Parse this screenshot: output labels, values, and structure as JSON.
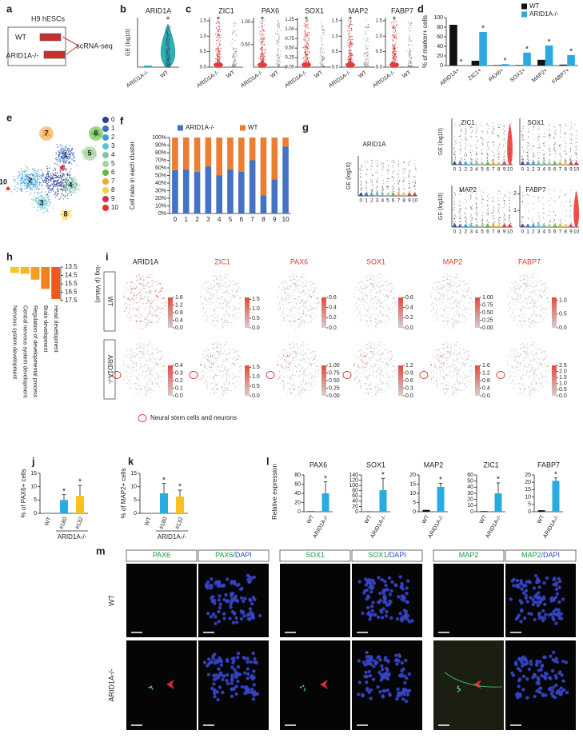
{
  "a": {
    "label": "a",
    "cell_line": "H9 hESCs",
    "groups": [
      "WT",
      "ARID1A-/-"
    ],
    "method": "scRNA-seq"
  },
  "b": {
    "label": "b",
    "type": "violin",
    "title": "ARID1A",
    "ylabel": "GE (log10)",
    "categories": [
      "ARID1A-/-",
      "WT"
    ],
    "sig": "*"
  },
  "c": {
    "label": "c",
    "charts": [
      {
        "type": "violin",
        "title": "ZIC1",
        "categories": [
          "ARID1A-/-",
          "WT"
        ],
        "sig": "*",
        "ylim": [
          0,
          1.6
        ],
        "yticks": [
          {
            "value": 0,
            "label": "0.0"
          },
          0.5,
          {
            "value": 1,
            "label": "1.0"
          },
          1.5
        ]
      },
      {
        "type": "violin",
        "title": "PAX6",
        "categories": [
          "ARID1A-/-",
          "WT"
        ],
        "sig": "*",
        "ylim": [
          0,
          1.1
        ],
        "yticks": [
          {
            "value": 0.5,
            "label": "0.50"
          },
          {
            "value": 1,
            "label": "1.00"
          }
        ]
      },
      {
        "type": "violin",
        "title": "SOX1",
        "categories": [
          "ARID1A-/-",
          "WT"
        ],
        "sig": "*",
        "ylim": [
          0,
          1.3
        ],
        "yticks": [
          {
            "value": 0,
            "label": "0.00"
          },
          0.25,
          {
            "value": 0.5,
            "label": "0.50"
          },
          0.75,
          {
            "value": 1,
            "label": "1.00"
          },
          1.25
        ]
      },
      {
        "type": "violin",
        "title": "MAP2",
        "categories": [
          "ARID1A-/-",
          "WT"
        ],
        "sig": "*",
        "ylim": [
          0,
          1.6
        ],
        "yticks": [
          {
            "value": 0,
            "label": "0.0"
          },
          0.5,
          {
            "value": 1,
            "label": "1.0"
          },
          1.5
        ]
      },
      {
        "type": "violin",
        "title": "FABP7",
        "categories": [
          "ARID1A-/-",
          "WT"
        ],
        "sig": "*",
        "ylim": [
          0,
          1.6
        ],
        "yticks": [
          {
            "value": 0,
            "label": "0.0"
          },
          0.5,
          {
            "value": 1,
            "label": "1.0"
          },
          1.5
        ]
      }
    ]
  },
  "d": {
    "label": "d",
    "type": "bar",
    "ylabel": "% of marker+ cells",
    "categories": [
      "ARID1A+",
      "ZIC1+",
      "PAX6+",
      "SOX1+",
      "MAP2+",
      "FABP7+"
    ],
    "series": [
      {
        "name": "WT",
        "color": "#111111",
        "values": [
          85,
          10,
          1,
          1,
          12,
          2
        ]
      },
      {
        "name": "ARID1A-/-",
        "color": "#29abe2",
        "values": [
          0,
          70,
          3,
          27,
          42,
          22
        ],
        "sig": [
          "*",
          "*",
          "*",
          "*",
          "*",
          "*"
        ]
      }
    ],
    "ylim": [
      0,
      100
    ],
    "yticks": [
      0,
      20,
      40,
      60,
      80,
      100
    ]
  },
  "e": {
    "label": "e",
    "clusters": [
      {
        "label": "0",
        "color": "#2c3e93"
      },
      {
        "label": "1",
        "color": "#3d6cc0"
      },
      {
        "label": "2",
        "color": "#35a2d6"
      },
      {
        "label": "3",
        "color": "#5dc2cf"
      },
      {
        "label": "4",
        "color": "#7cc6a3"
      },
      {
        "label": "5",
        "color": "#9fd39c"
      },
      {
        "label": "6",
        "color": "#64b944"
      },
      {
        "label": "7",
        "color": "#f5a540"
      },
      {
        "label": "8",
        "color": "#f3d33b"
      },
      {
        "label": "9",
        "color": "#d62d51"
      },
      {
        "label": "10",
        "color": "#e8302a"
      }
    ]
  },
  "f": {
    "label": "f",
    "type": "bar",
    "stacked": true,
    "ylabel": "Cell ratio in each cluster",
    "categories": [
      "0",
      "1",
      "2",
      "3",
      "4",
      "5",
      "6",
      "7",
      "8",
      "9",
      "10"
    ],
    "series": [
      {
        "name": "ARID1A-/-",
        "color": "#4472c4",
        "values": [
          57,
          58,
          55,
          62,
          50,
          58,
          55,
          70,
          24,
          45,
          88
        ]
      },
      {
        "name": "WT",
        "color": "#ed7d31",
        "values": [
          43,
          42,
          45,
          38,
          50,
          42,
          45,
          30,
          76,
          55,
          12
        ]
      }
    ],
    "ylim": [
      0,
      100
    ],
    "yticks": [
      {
        "value": 0,
        "label": "0%"
      },
      {
        "value": 10,
        "label": "10%"
      },
      {
        "value": 20,
        "label": "20%"
      },
      {
        "value": 30,
        "label": "30%"
      },
      {
        "value": 40,
        "label": "40%"
      },
      {
        "value": 50,
        "label": "50%"
      },
      {
        "value": 60,
        "label": "60%"
      },
      {
        "value": 70,
        "label": "70%"
      },
      {
        "value": 80,
        "label": "80%"
      },
      {
        "value": 90,
        "label": "90%"
      },
      {
        "value": 100,
        "label": "100%"
      }
    ]
  },
  "g": {
    "label": "g",
    "ylabel": "GE (log10)",
    "categories": [
      "0",
      "1",
      "2",
      "3",
      "4",
      "5",
      "6",
      "7",
      "8",
      "9",
      "10"
    ],
    "charts": [
      {
        "title": "ARID1A"
      },
      {
        "title": "ZIC1"
      },
      {
        "title": "SOX1"
      },
      {
        "title": "MAP2"
      },
      {
        "title": "FABP7",
        "ylim": [
          0,
          2.5
        ],
        "yticks": [
          1,
          2
        ]
      }
    ]
  },
  "h": {
    "label": "h",
    "type": "bar",
    "axis_label": "-log (p Value)",
    "categories": [
      "Nervous system development",
      "Central nervous system development",
      "Regulation of developmental process",
      "Brain development",
      "Head development"
    ],
    "values": [
      14.2,
      14.3,
      15.0,
      16.1,
      17.3
    ],
    "colors": [
      "#f7c81e",
      "#f7b71e",
      "#f59d1e",
      "#f2811e",
      "#ee5a1e"
    ],
    "ylim": [
      13.5,
      17.5
    ],
    "yticks": [
      13.5,
      14.5,
      15.5,
      16.5,
      17.5
    ]
  },
  "i": {
    "label": "i",
    "columns": [
      {
        "title": "ARID1A",
        "color": "#222222"
      },
      {
        "title": "ZIC1",
        "color": "#e03c31"
      },
      {
        "title": "PAX6",
        "color": "#e03c31"
      },
      {
        "title": "SOX1",
        "color": "#e03c31"
      },
      {
        "title": "MAP2",
        "color": "#e03c31"
      },
      {
        "title": "FABP7",
        "color": "#e03c31"
      }
    ],
    "rows": [
      {
        "label": "WT",
        "scales": [
          {
            "range": [
              0,
              1.6
            ],
            "ticks": [
              {
                "value": 0,
                "label": "0.0"
              },
              0.4,
              0.8,
              1.2,
              1.6
            ]
          },
          {
            "range": [
              0,
              1.6
            ],
            "ticks": [
              {
                "value": 0,
                "label": "0.0"
              },
              0.5,
              {
                "value": 1,
                "label": "1.0"
              },
              1.5
            ]
          },
          {
            "range": [
              0,
              0.6
            ],
            "ticks": [
              {
                "value": 0,
                "label": "0.0"
              },
              0.2,
              0.4,
              0.6
            ]
          },
          {
            "range": [
              0,
              0.6
            ],
            "ticks": [
              {
                "value": 0,
                "label": "0.0"
              },
              0.2,
              0.4,
              0.6
            ]
          },
          {
            "range": [
              0,
              1
            ],
            "ticks": [
              {
                "value": 0,
                "label": "0.00"
              },
              0.25,
              {
                "value": 0.5,
                "label": "0.50"
              },
              0.75,
              {
                "value": 1,
                "label": "1.00"
              }
            ]
          },
          {
            "range": [
              0,
              1.1
            ],
            "ticks": [
              {
                "value": 0,
                "label": "0.0"
              },
              0.5,
              {
                "value": 1,
                "label": "1.0"
              }
            ]
          }
        ]
      },
      {
        "label": "ARID1A-/-",
        "scales": [
          {
            "range": [
              0,
              0.4
            ],
            "ticks": [
              {
                "value": 0,
                "label": "0.0"
              },
              0.1,
              0.2,
              0.3,
              0.4
            ]
          },
          {
            "range": [
              0,
              1.6
            ],
            "ticks": [
              {
                "value": 0,
                "label": "0.0"
              },
              0.5,
              {
                "value": 1,
                "label": "1.0"
              },
              1.5
            ]
          },
          {
            "range": [
              0,
              1
            ],
            "ticks": [
              {
                "value": 0,
                "label": "0.00"
              },
              0.25,
              {
                "value": 0.5,
                "label": "0.50"
              },
              0.75,
              {
                "value": 1,
                "label": "1.00"
              }
            ]
          },
          {
            "range": [
              0,
              1.2
            ],
            "ticks": [
              {
                "value": 0,
                "label": "0.0"
              },
              0.3,
              0.6,
              0.9,
              1.2
            ]
          },
          {
            "range": [
              0,
              1.6
            ],
            "ticks": [
              {
                "value": 0,
                "label": "0.0"
              },
              0.4,
              0.8,
              1.2,
              1.6
            ]
          },
          {
            "range": [
              0,
              2.5
            ],
            "ticks": [
              {
                "value": 0,
                "label": "0.0"
              },
              0.5,
              {
                "value": 1,
                "label": "1.0"
              },
              1.5,
              {
                "value": 2,
                "label": "2.0"
              },
              2.5
            ]
          }
        ]
      }
    ],
    "legend": "Neural stem cells and neurons"
  },
  "j": {
    "label": "j",
    "type": "bar",
    "ylabel": "% of PAX6+ cells",
    "categories": [
      "WT",
      "#180",
      "#132"
    ],
    "colors": [
      "#29abe2",
      "#29abe2",
      "#f7c21c"
    ],
    "values": [
      0,
      5,
      6.5
    ],
    "errors": [
      0,
      2,
      4
    ],
    "sig": [
      null,
      "*",
      "*"
    ],
    "group": "ARID1A-/-",
    "ylim": [
      0,
      15
    ],
    "yticks": [
      0,
      5,
      10,
      15
    ]
  },
  "k": {
    "label": "k",
    "type": "bar",
    "ylabel": "% of MAP2+ cells",
    "categories": [
      "WT",
      "#180",
      "#132"
    ],
    "colors": [
      "#29abe2",
      "#29abe2",
      "#f7c21c"
    ],
    "values": [
      0,
      7.5,
      6.3
    ],
    "errors": [
      0,
      3.7,
      2.4
    ],
    "sig": [
      null,
      "*",
      "*"
    ],
    "group": "ARID1A-/-",
    "ylim": [
      0,
      15
    ],
    "yticks": [
      0,
      5,
      10,
      15
    ]
  },
  "l": {
    "label": "l",
    "ylabel": "Relative expression",
    "charts": [
      {
        "type": "bar",
        "title": "PAX6",
        "categories": [
          "WT",
          "ARID1A-/-"
        ],
        "colors": [
          "#111111",
          "#29abe2"
        ],
        "values": [
          1,
          40
        ],
        "errors": [
          0,
          25
        ],
        "sig": [
          null,
          "*"
        ],
        "ylim": [
          0,
          80
        ],
        "yticks": [
          0,
          20,
          40,
          60,
          80
        ]
      },
      {
        "type": "bar",
        "title": "SOX1",
        "categories": [
          "WT",
          "ARID1A-/-"
        ],
        "colors": [
          "#111111",
          "#29abe2"
        ],
        "values": [
          1,
          82
        ],
        "errors": [
          0,
          45
        ],
        "sig": [
          null,
          "*"
        ],
        "ylim": [
          0,
          140
        ],
        "yticks": [
          0,
          20,
          40,
          60,
          80,
          100,
          120,
          140
        ]
      },
      {
        "type": "bar",
        "title": "MAP2",
        "categories": [
          "WT",
          "ARID1A-/-"
        ],
        "colors": [
          "#111111",
          "#29abe2"
        ],
        "values": [
          1,
          13.5
        ],
        "errors": [
          0,
          2
        ],
        "sig": [
          null,
          "*"
        ],
        "ylim": [
          0,
          20
        ],
        "yticks": [
          0,
          5,
          10,
          15,
          20
        ]
      },
      {
        "type": "bar",
        "title": "ZIC1",
        "categories": [
          "WT",
          "ARID1A-/-"
        ],
        "colors": [
          "#111111",
          "#29abe2"
        ],
        "values": [
          1,
          30
        ],
        "errors": [
          0,
          17
        ],
        "sig": [
          null,
          "*"
        ],
        "ylim": [
          0,
          60
        ],
        "yticks": [
          0,
          10,
          20,
          30,
          40,
          50,
          60
        ]
      },
      {
        "type": "bar",
        "title": "FABP7",
        "categories": [
          "WT",
          "ARID1A-/-"
        ],
        "colors": [
          "#111111",
          "#29abe2"
        ],
        "values": [
          1,
          21
        ],
        "errors": [
          0,
          2
        ],
        "sig": [
          null,
          "*"
        ],
        "ylim": [
          0,
          25
        ],
        "yticks": [
          0,
          5,
          10,
          15,
          20,
          25
        ]
      }
    ]
  },
  "m": {
    "label": "m",
    "headers": [
      {
        "marker": "PAX6"
      },
      {
        "marker": "PAX6",
        "counterstain": "/DAPI"
      },
      {
        "marker": "SOX1"
      },
      {
        "marker": "SOX1",
        "counterstain": "/DAPI"
      },
      {
        "marker": "MAP2"
      },
      {
        "marker": "MAP2",
        "counterstain": "/DAPI"
      }
    ],
    "rows": [
      "WT",
      "ARID1A-/-"
    ]
  }
}
